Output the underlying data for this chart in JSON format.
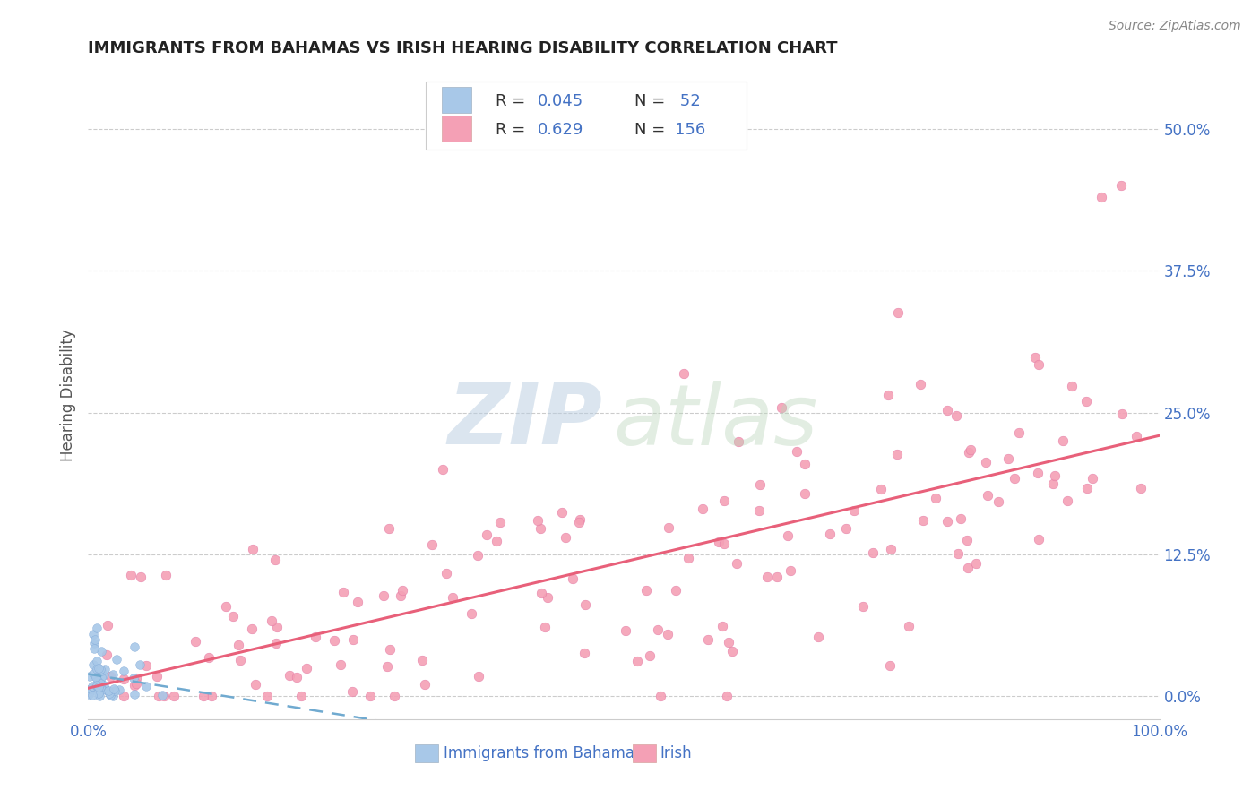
{
  "title": "IMMIGRANTS FROM BAHAMAS VS IRISH HEARING DISABILITY CORRELATION CHART",
  "source": "Source: ZipAtlas.com",
  "ylabel": "Hearing Disability",
  "ytick_labels": [
    "0.0%",
    "12.5%",
    "25.0%",
    "37.5%",
    "50.0%"
  ],
  "ytick_values": [
    0.0,
    0.125,
    0.25,
    0.375,
    0.5
  ],
  "legend_label1": "Immigrants from Bahamas",
  "legend_label2": "Irish",
  "r1": 0.045,
  "n1": 52,
  "r2": 0.629,
  "n2": 156,
  "scatter_color1": "#a8c8e8",
  "scatter_color2": "#f4a0b5",
  "line_color1": "#70aad0",
  "line_color2": "#e8607a",
  "background_color": "#ffffff",
  "title_color": "#222222",
  "tick_color_right": "#4472c4",
  "xlim": [
    0.0,
    1.0
  ],
  "ylim": [
    -0.02,
    0.55
  ]
}
